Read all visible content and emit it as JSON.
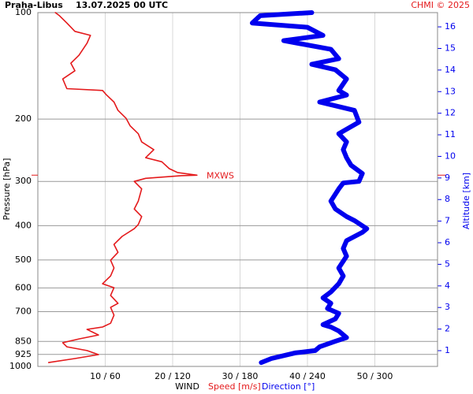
{
  "chart_data": {
    "type": "line",
    "title": "Praha-Libus",
    "subtitle": "13.07.2025 00 UTC",
    "credit": "CHMI © 2025",
    "x_label_prefix": "WIND",
    "x_label": "Speed [m/s]",
    "x2_label": "Direction [°]",
    "y_label": "Pressure [hPa]",
    "y2_label": "Altitude [km]",
    "ylog": true,
    "ylim": [
      1000,
      100
    ],
    "yticks": [
      100,
      200,
      300,
      400,
      500,
      600,
      700,
      850,
      925,
      1000
    ],
    "y2lim": [
      0.27,
      16.66
    ],
    "y2ticks": [
      1,
      2,
      3,
      4,
      5,
      6,
      7,
      8,
      9,
      10,
      11,
      12,
      13,
      14,
      15,
      16
    ],
    "xlim": [
      0,
      59.3
    ],
    "x2lim": [
      0,
      356
    ],
    "xticks": [
      {
        "value": 10,
        "label": "10 / 60"
      },
      {
        "value": 20,
        "label": "20 / 120"
      },
      {
        "value": 30,
        "label": "30 / 180"
      },
      {
        "value": 40,
        "label": "40 / 240"
      },
      {
        "value": 50,
        "label": "50 / 300"
      }
    ],
    "grid": true,
    "annotation": {
      "label": "MXWS",
      "pressure": 288
    },
    "series": [
      {
        "name": "Speed",
        "color": "#e41a1c",
        "axis": "x",
        "pressure": [
          975,
          950,
          926,
          902,
          880,
          857,
          836,
          815,
          786,
          774,
          755,
          716,
          681,
          663,
          630,
          599,
          584,
          555,
          527,
          501,
          476,
          452,
          429,
          408,
          397,
          377,
          359,
          341,
          315,
          300,
          294,
          289,
          288,
          283,
          276,
          264,
          257,
          244,
          232,
          220,
          209,
          199,
          189,
          179,
          171,
          166,
          164,
          154,
          146,
          139,
          132,
          122,
          116,
          113,
          107,
          102,
          100
        ],
        "values": [
          1.6,
          5.5,
          9.0,
          7.3,
          4.3,
          3.7,
          6.1,
          9.0,
          7.3,
          9.6,
          10.8,
          11.3,
          10.8,
          11.9,
          10.8,
          11.3,
          9.6,
          10.8,
          11.3,
          10.8,
          11.9,
          11.3,
          12.5,
          14.3,
          14.9,
          15.4,
          14.3,
          14.9,
          15.4,
          14.3,
          16.0,
          21.3,
          23.6,
          20.7,
          19.5,
          18.4,
          16.0,
          17.2,
          15.4,
          14.9,
          13.7,
          13.1,
          11.9,
          11.3,
          10.2,
          9.6,
          4.3,
          3.7,
          5.5,
          4.9,
          6.1,
          7.3,
          7.8,
          5.5,
          4.3,
          3.2,
          2.6
        ]
      },
      {
        "name": "Direction",
        "color": "#0000ee",
        "axis": "x2",
        "pressure": [
          975,
          950,
          916,
          902,
          880,
          849,
          829,
          794,
          774,
          762,
          734,
          708,
          686,
          663,
          640,
          616,
          584,
          555,
          527,
          488,
          464,
          441,
          418,
          408,
          387,
          377,
          359,
          341,
          315,
          303,
          300,
          285,
          270,
          257,
          244,
          232,
          220,
          204,
          189,
          179,
          171,
          166,
          154,
          145,
          140,
          135,
          127,
          120,
          116,
          110,
          107,
          102,
          100
        ],
        "values": [
          199,
          208,
          229,
          247,
          251,
          265,
          275,
          268,
          261,
          254,
          265,
          268,
          258,
          261,
          254,
          261,
          268,
          272,
          268,
          275,
          272,
          275,
          289,
          293,
          282,
          275,
          265,
          261,
          268,
          272,
          286,
          289,
          279,
          275,
          272,
          275,
          268,
          286,
          282,
          251,
          275,
          268,
          275,
          265,
          244,
          268,
          261,
          219,
          254,
          240,
          191,
          198,
          244
        ]
      }
    ]
  }
}
